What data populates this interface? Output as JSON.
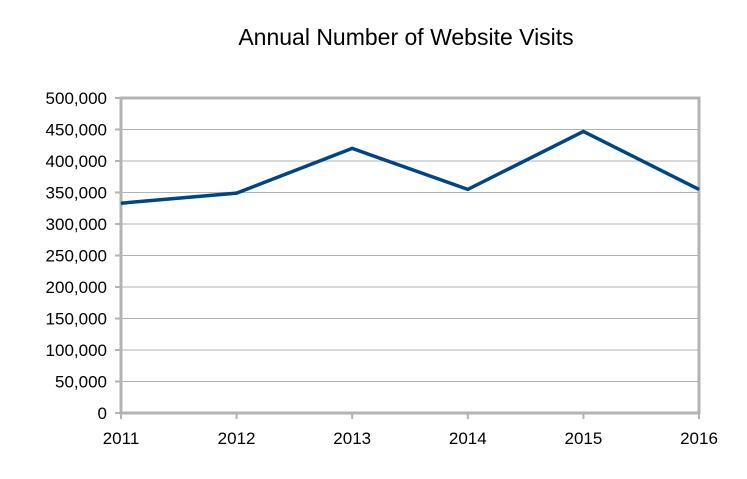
{
  "chart_data": {
    "type": "line",
    "title": "Annual Number of Website Visits",
    "xlabel": "",
    "ylabel": "",
    "categories": [
      "2011",
      "2012",
      "2013",
      "2014",
      "2015",
      "2016"
    ],
    "y_tick_labels": [
      "0",
      "50,000",
      "100,000",
      "150,000",
      "200,000",
      "250,000",
      "300,000",
      "350,000",
      "400,000",
      "450,000",
      "500,000"
    ],
    "ylim": [
      0,
      500000
    ],
    "series": [
      {
        "values": [
          333000,
          349000,
          420000,
          355000,
          447000,
          355000
        ],
        "color": "#004586"
      }
    ],
    "grid": true,
    "legend": "none"
  }
}
